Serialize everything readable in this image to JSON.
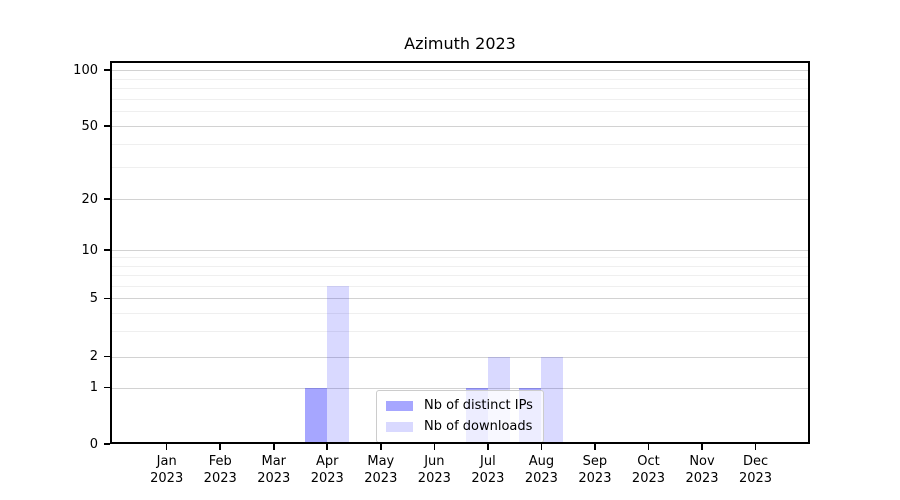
{
  "title": "Azimuth 2023",
  "chart_data": {
    "type": "bar",
    "title": "Azimuth 2023",
    "categories": [
      "Jan 2023",
      "Feb 2023",
      "Mar 2023",
      "Apr 2023",
      "May 2023",
      "Jun 2023",
      "Jul 2023",
      "Aug 2023",
      "Sep 2023",
      "Oct 2023",
      "Nov 2023",
      "Dec 2023"
    ],
    "series": [
      {
        "name": "Nb of distinct IPs",
        "color": "rgba(0,0,255,0.35)",
        "values": [
          0,
          0,
          0,
          1,
          0,
          0,
          1,
          1,
          0,
          0,
          0,
          0
        ]
      },
      {
        "name": "Nb of downloads",
        "color": "rgba(0,0,255,0.15)",
        "values": [
          0,
          0,
          0,
          6,
          0,
          0,
          2,
          2,
          0,
          0,
          0,
          0
        ]
      }
    ],
    "xlabel": "",
    "ylabel": "",
    "yscale": "symlog",
    "yticks": [
      0,
      1,
      2,
      5,
      10,
      20,
      50,
      100
    ],
    "ylim": [
      0,
      110
    ],
    "grid": "horizontal",
    "legend_position": "lower center",
    "colors": {
      "grid_major": "#d2d2d2",
      "grid_minor": "#efefef",
      "axis": "#000000"
    }
  }
}
